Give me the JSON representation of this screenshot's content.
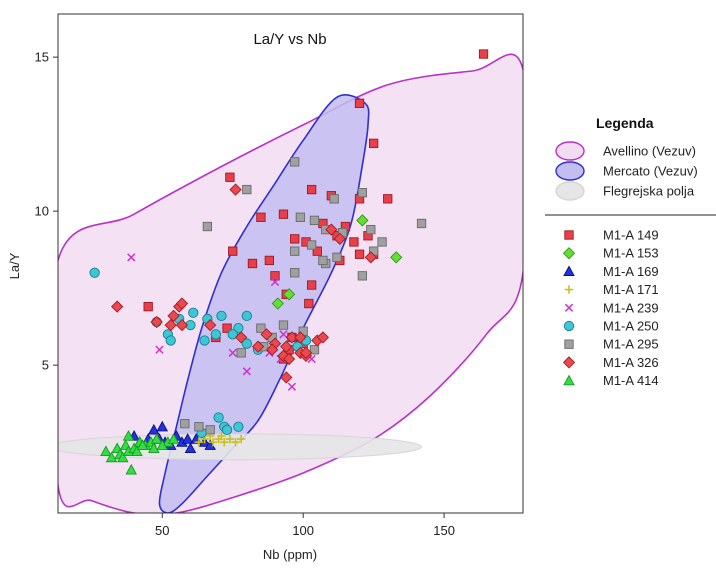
{
  "chart_data": {
    "type": "scatter",
    "title": "La/Y vs Nb",
    "xlabel": "Nb (ppm)",
    "ylabel": "La/Y",
    "xlim": [
      13,
      178
    ],
    "ylim": [
      0.2,
      16.4
    ],
    "xticks": [
      50,
      100,
      150
    ],
    "yticks": [
      5,
      10,
      15
    ],
    "grid": false,
    "legend": {
      "title": "Legenda",
      "placement": "right",
      "fields": [
        {
          "name": "Avellino (Vezuv)",
          "fill": "#f2dcf2",
          "stroke": "#b832c8"
        },
        {
          "name": "Mercato (Vezuv)",
          "fill": "#c3bdf0",
          "stroke": "#2f2fd0"
        },
        {
          "name": "Flegrejska polja",
          "fill": "#e6e6e6",
          "stroke": "#d6d6d6"
        }
      ]
    },
    "fields": [
      {
        "name": "Avellino (Vezuv)",
        "fill": "#f2dcf2",
        "stroke": "#b832c8",
        "polygon": [
          [
            13,
            8.4
          ],
          [
            40,
            9.9
          ],
          [
            70,
            11.4
          ],
          [
            100,
            12.8
          ],
          [
            130,
            14.1
          ],
          [
            160,
            14.55
          ],
          [
            178,
            14.6
          ],
          [
            178,
            8.0
          ],
          [
            165,
            6.0
          ],
          [
            145,
            4.0
          ],
          [
            125,
            2.6
          ],
          [
            100,
            1.5
          ],
          [
            75,
            0.7
          ],
          [
            55,
            0.2
          ],
          [
            40,
            0.2
          ],
          [
            25,
            0.6
          ],
          [
            13,
            1.1
          ]
        ]
      },
      {
        "name": "Mercato (Vezuv)",
        "fill": "#c3bdf0",
        "stroke": "#2f2fd0",
        "polygon": [
          [
            122,
            13.5
          ],
          [
            112,
            13.7
          ],
          [
            100,
            12.3
          ],
          [
            90,
            10.9
          ],
          [
            80,
            9.5
          ],
          [
            71,
            8.0
          ],
          [
            64,
            6.2
          ],
          [
            59,
            4.5
          ],
          [
            55,
            3.0
          ],
          [
            51,
            1.5
          ],
          [
            49,
            0.5
          ],
          [
            52,
            0.2
          ],
          [
            57,
            0.5
          ],
          [
            66,
            1.4
          ],
          [
            75,
            2.3
          ],
          [
            84,
            3.2
          ],
          [
            92,
            4.6
          ],
          [
            100,
            6.2
          ],
          [
            110,
            8.0
          ],
          [
            117,
            9.6
          ],
          [
            121,
            11.5
          ],
          [
            123,
            12.8
          ]
        ]
      },
      {
        "name": "Flegrejska polja",
        "fill": "#e6e6e6",
        "stroke": "#d6d6d6",
        "ellipse": {
          "cx": 76,
          "cy": 2.35,
          "rx": 66,
          "ry": 0.42
        }
      }
    ],
    "series": [
      {
        "name": "M1-A 149",
        "marker": "square",
        "fill": "#e8404b",
        "stroke": "#a01820",
        "points": [
          [
            164,
            15.1
          ],
          [
            120,
            13.5
          ],
          [
            125,
            12.2
          ],
          [
            74,
            11.1
          ],
          [
            103,
            10.7
          ],
          [
            110,
            10.5
          ],
          [
            120,
            10.4
          ],
          [
            130,
            10.4
          ],
          [
            93,
            9.9
          ],
          [
            85,
            9.8
          ],
          [
            107,
            9.6
          ],
          [
            115,
            9.5
          ],
          [
            123,
            9.2
          ],
          [
            112,
            9.2
          ],
          [
            97,
            9.1
          ],
          [
            101,
            9.0
          ],
          [
            118,
            9.0
          ],
          [
            105,
            8.7
          ],
          [
            125,
            8.6
          ],
          [
            75,
            8.7
          ],
          [
            82,
            8.3
          ],
          [
            88,
            8.4
          ],
          [
            113,
            8.4
          ],
          [
            120,
            8.6
          ],
          [
            90,
            7.9
          ],
          [
            103,
            7.6
          ],
          [
            94,
            7.3
          ],
          [
            102,
            7.0
          ],
          [
            45,
            6.9
          ],
          [
            73,
            6.2
          ],
          [
            69,
            5.9
          ],
          [
            95,
            5.5
          ],
          [
            100,
            5.7
          ],
          [
            93,
            5.2
          ],
          [
            96,
            5.9
          ]
        ]
      },
      {
        "name": "M1-A 153",
        "marker": "diamond",
        "fill": "#66dd33",
        "stroke": "#2b9a16",
        "points": [
          [
            133,
            8.5
          ],
          [
            121,
            9.7
          ],
          [
            95,
            7.3
          ],
          [
            91,
            7.0
          ]
        ]
      },
      {
        "name": "M1-A 169",
        "marker": "triangle",
        "fill": "#2233dd",
        "stroke": "#0a0a8a",
        "points": [
          [
            40,
            2.7
          ],
          [
            45,
            2.6
          ],
          [
            47,
            2.9
          ],
          [
            49,
            2.6
          ],
          [
            51,
            2.5
          ],
          [
            53,
            2.4
          ],
          [
            55,
            2.7
          ],
          [
            57,
            2.5
          ],
          [
            59,
            2.6
          ],
          [
            62,
            2.6
          ],
          [
            65,
            2.5
          ],
          [
            67,
            2.4
          ],
          [
            60,
            2.3
          ],
          [
            42,
            2.5
          ],
          [
            50,
            3.0
          ]
        ]
      },
      {
        "name": "M1-A 171",
        "marker": "plus",
        "fill": "#c8c020",
        "stroke": "#c8c020",
        "points": [
          [
            65,
            2.6
          ],
          [
            68,
            2.5
          ],
          [
            70,
            2.6
          ],
          [
            72,
            2.5
          ],
          [
            74,
            2.6
          ],
          [
            76,
            2.5
          ],
          [
            78,
            2.6
          ],
          [
            63,
            2.5
          ],
          [
            67,
            2.7
          ],
          [
            71,
            2.7
          ]
        ]
      },
      {
        "name": "M1-A 239",
        "marker": "cross",
        "fill": "#cc33cc",
        "stroke": "#cc33cc",
        "points": [
          [
            39,
            8.5
          ],
          [
            49,
            5.5
          ],
          [
            90,
            7.7
          ],
          [
            93,
            6.0
          ],
          [
            75,
            5.4
          ],
          [
            80,
            4.8
          ],
          [
            96,
            4.3
          ],
          [
            88,
            5.4
          ],
          [
            103,
            5.2
          ],
          [
            92,
            5.2
          ]
        ]
      },
      {
        "name": "M1-A 250",
        "marker": "circle",
        "fill": "#3ec6d6",
        "stroke": "#16808a",
        "points": [
          [
            26,
            8.0
          ],
          [
            48,
            6.4
          ],
          [
            52,
            6.0
          ],
          [
            56,
            6.5
          ],
          [
            53,
            5.8
          ],
          [
            60,
            6.3
          ],
          [
            66,
            6.5
          ],
          [
            69,
            6.0
          ],
          [
            65,
            5.8
          ],
          [
            71,
            6.6
          ],
          [
            77,
            6.2
          ],
          [
            75,
            6.0
          ],
          [
            80,
            6.6
          ],
          [
            84,
            5.5
          ],
          [
            80,
            5.7
          ],
          [
            70,
            3.3
          ],
          [
            72,
            3.0
          ],
          [
            64,
            2.8
          ],
          [
            73,
            2.9
          ],
          [
            77,
            3.0
          ],
          [
            98,
            5.6
          ],
          [
            101,
            5.8
          ],
          [
            61,
            6.7
          ]
        ]
      },
      {
        "name": "M1-A 295",
        "marker": "square",
        "fill": "#a0a0a0",
        "stroke": "#6a6a6a",
        "points": [
          [
            97,
            11.6
          ],
          [
            121,
            10.6
          ],
          [
            111,
            10.4
          ],
          [
            66,
            9.5
          ],
          [
            80,
            10.7
          ],
          [
            99,
            9.8
          ],
          [
            104,
            9.7
          ],
          [
            108,
            9.4
          ],
          [
            114,
            9.3
          ],
          [
            124,
            9.4
          ],
          [
            128,
            9.0
          ],
          [
            142,
            9.6
          ],
          [
            125,
            8.7
          ],
          [
            112,
            8.5
          ],
          [
            108,
            8.3
          ],
          [
            97,
            8.7
          ],
          [
            103,
            8.9
          ],
          [
            107,
            8.4
          ],
          [
            97,
            8.0
          ],
          [
            121,
            7.9
          ],
          [
            100,
            6.1
          ],
          [
            93,
            6.3
          ],
          [
            85,
            6.2
          ],
          [
            89,
            5.9
          ],
          [
            104,
            5.5
          ],
          [
            78,
            5.4
          ],
          [
            86,
            5.6
          ],
          [
            58,
            3.1
          ],
          [
            63,
            3.0
          ],
          [
            67,
            2.9
          ]
        ]
      },
      {
        "name": "M1-A 326",
        "marker": "diamond",
        "fill": "#e84a50",
        "stroke": "#a81a20",
        "points": [
          [
            34,
            6.9
          ],
          [
            76,
            10.7
          ],
          [
            56,
            6.9
          ],
          [
            57,
            7.0
          ],
          [
            54,
            6.6
          ],
          [
            53,
            6.3
          ],
          [
            57,
            6.3
          ],
          [
            48,
            6.4
          ],
          [
            67,
            6.3
          ],
          [
            78,
            5.9
          ],
          [
            87,
            6.0
          ],
          [
            90,
            5.7
          ],
          [
            93,
            5.3
          ],
          [
            95,
            5.2
          ],
          [
            99,
            5.4
          ],
          [
            101,
            5.3
          ],
          [
            105,
            5.8
          ],
          [
            94,
            4.6
          ],
          [
            107,
            5.9
          ],
          [
            96,
            5.9
          ],
          [
            99,
            5.9
          ],
          [
            101,
            5.4
          ],
          [
            89,
            5.5
          ],
          [
            113,
            9.1
          ],
          [
            110,
            9.4
          ],
          [
            124,
            8.5
          ],
          [
            94,
            5.6
          ],
          [
            84,
            5.6
          ]
        ]
      },
      {
        "name": "M1-A 414",
        "marker": "triangle",
        "fill": "#33dd44",
        "stroke": "#1a9922",
        "points": [
          [
            30,
            2.2
          ],
          [
            32,
            2.0
          ],
          [
            34,
            2.3
          ],
          [
            35,
            2.1
          ],
          [
            36,
            2.0
          ],
          [
            37,
            2.4
          ],
          [
            38,
            2.2
          ],
          [
            39,
            1.6
          ],
          [
            40,
            2.3
          ],
          [
            42,
            2.5
          ],
          [
            44,
            2.4
          ],
          [
            46,
            2.5
          ],
          [
            48,
            2.6
          ],
          [
            52,
            2.5
          ],
          [
            54,
            2.6
          ],
          [
            41,
            2.2
          ],
          [
            38,
            2.7
          ],
          [
            43,
            2.4
          ],
          [
            47,
            2.3
          ],
          [
            50,
            2.4
          ]
        ]
      }
    ]
  }
}
